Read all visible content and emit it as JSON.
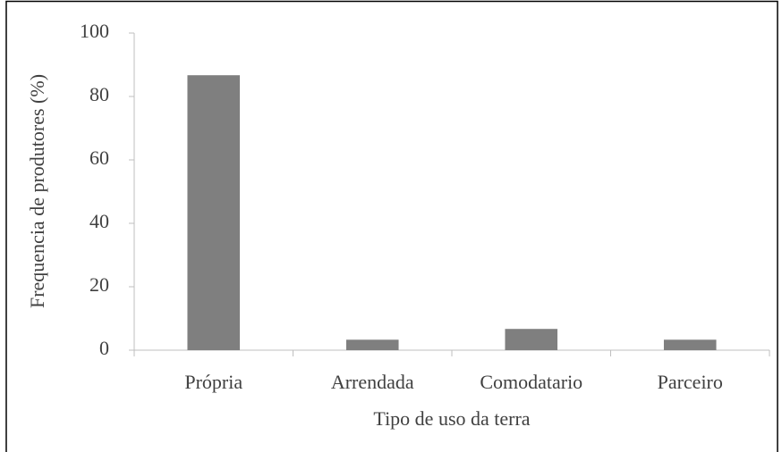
{
  "chart_data": {
    "type": "bar",
    "categories": [
      "Própria",
      "Arrendada",
      "Comodatario",
      "Parceiro"
    ],
    "values": [
      86.7,
      3.3,
      6.7,
      3.3
    ],
    "color": "#7f7f7f",
    "ylim": [
      0,
      100
    ],
    "yticks": [
      0,
      20,
      40,
      60,
      80,
      100
    ],
    "ylabel": "Frequencia de produtores (%)",
    "xlabel": "Tipo de uso da terra"
  }
}
